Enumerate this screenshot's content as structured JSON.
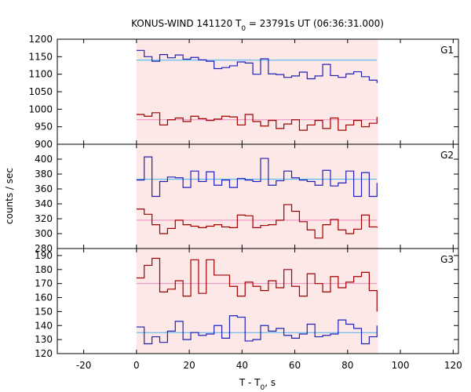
{
  "chart_data": {
    "type": "line",
    "title": {
      "prefix": "KONUS-WIND 141120 T",
      "sub": "0",
      "suffix": " = 23791s UT (06:36:31.000)"
    },
    "xlabel": {
      "prefix": "T - T",
      "sub": "0",
      "suffix": ", s"
    },
    "ylabel": "counts / sec",
    "xlim": [
      -30,
      122
    ],
    "xticks": [
      -20,
      0,
      20,
      40,
      60,
      80,
      100,
      120
    ],
    "shaded_interval": [
      0,
      91.5
    ],
    "bin_edges": [
      0,
      2.94,
      5.88,
      8.82,
      11.76,
      14.7,
      17.64,
      20.58,
      23.52,
      26.46,
      29.4,
      32.34,
      35.28,
      38.22,
      41.16,
      44.1,
      47.04,
      49.98,
      52.92,
      55.86,
      58.8,
      61.74,
      64.68,
      67.62,
      70.56,
      73.5,
      76.44,
      79.38,
      82.32,
      85.26,
      88.2,
      91.14
    ],
    "colors": {
      "blue": "#2020b8",
      "red": "#a00000",
      "blue_fit": "#4ab0f0",
      "red_fit": "#ee88bb",
      "shade": "#fde8e8"
    },
    "panels": [
      {
        "label": "G1",
        "ylim": [
          900,
          1200
        ],
        "yticks": [
          900,
          950,
          1000,
          1050,
          1100,
          1150,
          1200
        ],
        "series": [
          {
            "color_key": "blue",
            "fit": 1140,
            "values": [
              1168,
              1150,
              1137,
              1156,
              1147,
              1155,
              1143,
              1148,
              1141,
              1137,
              1116,
              1119,
              1124,
              1135,
              1132,
              1100,
              1144,
              1101,
              1099,
              1091,
              1095,
              1106,
              1087,
              1095,
              1128,
              1096,
              1091,
              1101,
              1107,
              1093,
              1083,
              1075
            ]
          },
          {
            "color_key": "red",
            "fit": 970,
            "values": [
              985,
              980,
              990,
              955,
              970,
              975,
              965,
              980,
              973,
              968,
              972,
              980,
              978,
              955,
              985,
              965,
              952,
              968,
              945,
              958,
              970,
              940,
              955,
              968,
              945,
              975,
              940,
              955,
              968,
              950,
              960,
              978
            ]
          }
        ],
        "fits": {
          "blue": 1140,
          "blue2": 1095,
          "red": 970
        }
      },
      {
        "label": "G2",
        "ylim": [
          280,
          420
        ],
        "yticks": [
          280,
          300,
          320,
          340,
          360,
          380,
          400
        ],
        "series": [
          {
            "color_key": "blue",
            "fit": 373,
            "values": [
              372,
              403,
              350,
              370,
              376,
              375,
              362,
              384,
              370,
              383,
              365,
              372,
              362,
              374,
              372,
              370,
              401,
              365,
              371,
              384,
              375,
              372,
              370,
              365,
              385,
              364,
              368,
              384,
              350,
              382,
              350,
              368
            ]
          },
          {
            "color_key": "red",
            "fit": 318,
            "values": [
              333,
              326,
              312,
              300,
              307,
              318,
              312,
              310,
              308,
              310,
              312,
              309,
              308,
              325,
              324,
              308,
              311,
              312,
              318,
              339,
              330,
              316,
              305,
              294,
              312,
              319,
              305,
              300,
              306,
              325,
              309,
              308
            ]
          }
        ]
      },
      {
        "label": "G3",
        "ylim": [
          120,
          195
        ],
        "yticks": [
          120,
          130,
          140,
          150,
          160,
          170,
          180,
          190
        ],
        "series": [
          {
            "color_key": "blue",
            "fit": 135,
            "values": [
              139,
              127,
              132,
              128,
              136,
              143,
              130,
              135,
              133,
              134,
              140,
              131,
              147,
              146,
              129,
              130,
              140,
              136,
              138,
              133,
              131,
              134,
              141,
              132,
              133,
              134,
              144,
              141,
              138,
              127,
              132,
              140
            ]
          },
          {
            "color_key": "red",
            "fit": 170,
            "values": [
              174,
              183,
              188,
              164,
              166,
              172,
              161,
              187,
              163,
              187,
              176,
              176,
              168,
              161,
              171,
              168,
              165,
              172,
              167,
              180,
              168,
              161,
              177,
              170,
              164,
              175,
              167,
              171,
              175,
              178,
              165,
              150
            ]
          }
        ]
      }
    ]
  }
}
